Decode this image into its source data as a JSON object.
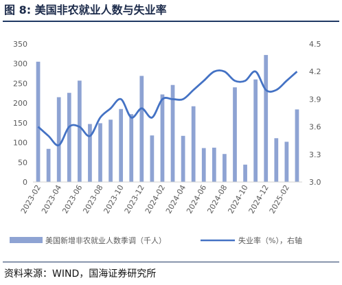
{
  "title": "图 8:  美国非农就业人数与失业率",
  "source": "资料来源：WIND，国海证券研究所",
  "chart_data": {
    "type": "bar",
    "x": [
      "2023-02",
      "2023-03",
      "2023-04",
      "2023-05",
      "2023-06",
      "2023-07",
      "2023-08",
      "2023-09",
      "2023-10",
      "2023-11",
      "2023-12",
      "2024-01",
      "2024-02",
      "2024-03",
      "2024-04",
      "2024-05",
      "2024-06",
      "2024-07",
      "2024-08",
      "2024-09",
      "2024-10",
      "2024-11",
      "2024-12",
      "2025-01",
      "2025-02",
      "2025-03"
    ],
    "x_tick_labels": [
      "2023-02",
      "2023-04",
      "2023-06",
      "2023-08",
      "2023-10",
      "2023-12",
      "2024-02",
      "2024-04",
      "2024-06",
      "2024-08",
      "2024-10",
      "2024-12",
      "2025-02"
    ],
    "series": [
      {
        "name": "美国新增非农就业人数季调（千人）",
        "type": "bar",
        "axis": "left",
        "color": "#8ea3d3",
        "values": [
          305,
          84,
          215,
          226,
          257,
          147,
          149,
          158,
          185,
          172,
          269,
          118,
          222,
          246,
          117,
          192,
          86,
          87,
          71,
          240,
          44,
          260,
          322,
          111,
          102,
          184
        ]
      },
      {
        "name": "失业率（%），右轴",
        "type": "line",
        "axis": "right",
        "color": "#4472c4",
        "values": [
          3.6,
          3.5,
          3.4,
          3.6,
          3.6,
          3.5,
          3.7,
          3.8,
          3.9,
          3.7,
          3.8,
          3.7,
          3.9,
          3.9,
          3.9,
          4.0,
          4.1,
          4.2,
          4.2,
          4.1,
          4.1,
          4.2,
          4.0,
          4.0,
          4.1,
          4.2
        ]
      }
    ],
    "ylim_left": [
      0,
      350
    ],
    "yticks_left": [
      0,
      50,
      100,
      150,
      200,
      250,
      300,
      350
    ],
    "ylim_right": [
      3.0,
      4.5
    ],
    "yticks_right": [
      "3.0",
      "3.3",
      "3.6",
      "3.9",
      "4.2",
      "4.5"
    ],
    "legend_position": "bottom",
    "grid": false
  }
}
